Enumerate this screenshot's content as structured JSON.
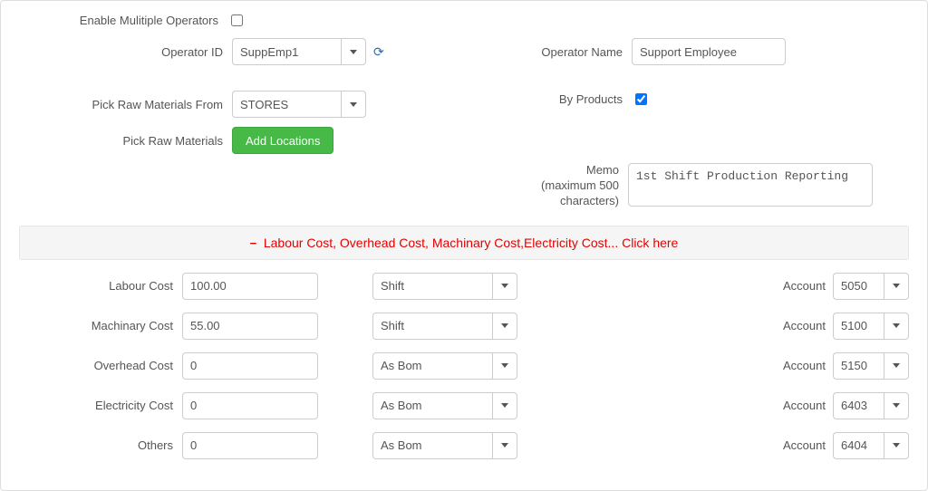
{
  "form": {
    "enable_multiple_operators": {
      "label": "Enable Mulitiple Operators",
      "checked": false
    },
    "operator_id": {
      "label": "Operator ID",
      "value": "SuppEmp1"
    },
    "operator_name": {
      "label": "Operator Name",
      "value": "Support Employee"
    },
    "pick_raw_materials_from": {
      "label": "Pick Raw Materials From",
      "value": "STORES"
    },
    "by_products": {
      "label": "By Products",
      "checked": true
    },
    "pick_raw_materials": {
      "label": "Pick Raw Materials",
      "button": "Add Locations"
    },
    "memo": {
      "label_line1": "Memo",
      "label_line2": "(maximum 500",
      "label_line3": "characters)",
      "value": "1st Shift Production Reporting"
    }
  },
  "costs_section": {
    "title": "Labour Cost, Overhead Cost, Machinary Cost,Electricity Cost... Click here",
    "rows": [
      {
        "label": "Labour Cost",
        "amount": "100.00",
        "basis": "Shift",
        "account_label": "Account",
        "account": "5050"
      },
      {
        "label": "Machinary Cost",
        "amount": "55.00",
        "basis": "Shift",
        "account_label": "Account",
        "account": "5100"
      },
      {
        "label": "Overhead Cost",
        "amount": "0",
        "basis": "As Bom",
        "account_label": "Account",
        "account": "5150"
      },
      {
        "label": "Electricity Cost",
        "amount": "0",
        "basis": "As Bom",
        "account_label": "Account",
        "account": "6403"
      },
      {
        "label": "Others",
        "amount": "0",
        "basis": "As Bom",
        "account_label": "Account",
        "account": "6404"
      }
    ]
  },
  "colors": {
    "accent_green": "#46b946",
    "danger_red": "#e60000",
    "border": "#cccccc",
    "text": "#555555"
  }
}
